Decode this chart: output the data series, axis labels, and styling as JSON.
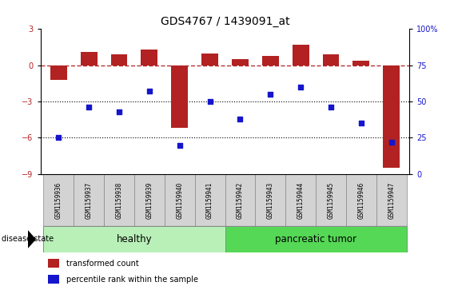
{
  "title": "GDS4767 / 1439091_at",
  "samples": [
    "GSM1159936",
    "GSM1159937",
    "GSM1159938",
    "GSM1159939",
    "GSM1159940",
    "GSM1159941",
    "GSM1159942",
    "GSM1159943",
    "GSM1159944",
    "GSM1159945",
    "GSM1159946",
    "GSM1159947"
  ],
  "transformed_counts": [
    -1.2,
    1.1,
    0.9,
    1.3,
    -5.2,
    1.0,
    0.5,
    0.8,
    1.7,
    0.9,
    0.4,
    -8.5
  ],
  "percentile_ranks": [
    25,
    46,
    43,
    57,
    20,
    50,
    38,
    55,
    60,
    46,
    35,
    22
  ],
  "bar_color": "#b22222",
  "dot_color": "#1515cc",
  "groups": [
    {
      "label": "healthy",
      "start": 0,
      "end": 6,
      "color": "#b8f0b8"
    },
    {
      "label": "pancreatic tumor",
      "start": 6,
      "end": 12,
      "color": "#55d855"
    }
  ],
  "ylim_left": [
    -9,
    3
  ],
  "ylim_right": [
    0,
    100
  ],
  "yticks_left": [
    -9,
    -6,
    -3,
    0,
    3
  ],
  "yticks_right": [
    0,
    25,
    50,
    75,
    100
  ],
  "hline_y": 0,
  "dotted_lines": [
    -3,
    -6
  ],
  "legend_items": [
    {
      "label": "transformed count",
      "color": "#b22222"
    },
    {
      "label": "percentile rank within the sample",
      "color": "#1515cc"
    }
  ],
  "disease_state_label": "disease state",
  "title_fontsize": 10,
  "tick_fontsize": 7,
  "sample_fontsize": 5.5,
  "group_label_fontsize": 8.5,
  "legend_fontsize": 7
}
